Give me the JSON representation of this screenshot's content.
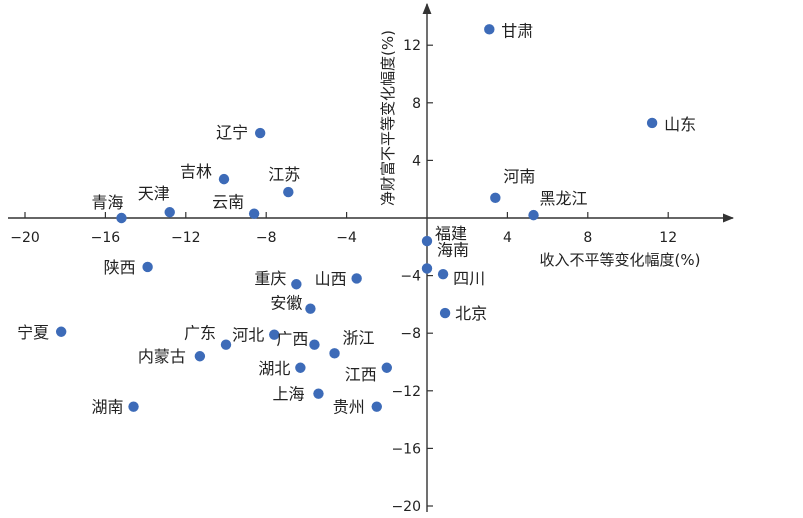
{
  "chart_data": {
    "type": "scatter",
    "title": "",
    "xlabel": "收入不平等变化幅度(%)",
    "ylabel": "净财富不平等变化幅度(%)",
    "xlim": [
      -20,
      14
    ],
    "ylim": [
      -20,
      14
    ],
    "x_ticks": [
      -20,
      -16,
      -12,
      -8,
      -4,
      4,
      8,
      12
    ],
    "y_ticks": [
      12,
      8,
      4,
      -4,
      -8,
      -12,
      -16,
      -20
    ],
    "grid": false,
    "point_color": "#3d6bb8",
    "points": [
      {
        "label": "甘肃",
        "x": 3.1,
        "y": 13.1
      },
      {
        "label": "山东",
        "x": 11.2,
        "y": 6.6
      },
      {
        "label": "辽宁",
        "x": -8.3,
        "y": 5.9
      },
      {
        "label": "吉林",
        "x": -10.1,
        "y": 2.7
      },
      {
        "label": "江苏",
        "x": -6.9,
        "y": 1.8
      },
      {
        "label": "青海",
        "x": -15.2,
        "y": 0.0
      },
      {
        "label": "天津",
        "x": -12.8,
        "y": 0.4
      },
      {
        "label": "云南",
        "x": -8.6,
        "y": 0.3
      },
      {
        "label": "河南",
        "x": 3.4,
        "y": 1.4
      },
      {
        "label": "黑龙江",
        "x": 5.3,
        "y": 0.2
      },
      {
        "label": "福建",
        "x": 0.0,
        "y": -1.6
      },
      {
        "label": "海南",
        "x": 0.0,
        "y": -3.5
      },
      {
        "label": "四川",
        "x": 0.8,
        "y": -3.9
      },
      {
        "label": "山西",
        "x": -3.5,
        "y": -4.2
      },
      {
        "label": "陕西",
        "x": -13.9,
        "y": -3.4
      },
      {
        "label": "重庆",
        "x": -6.5,
        "y": -4.6
      },
      {
        "label": "北京",
        "x": 0.9,
        "y": -6.6
      },
      {
        "label": "安徽",
        "x": -5.8,
        "y": -6.3
      },
      {
        "label": "宁夏",
        "x": -18.2,
        "y": -7.9
      },
      {
        "label": "广东",
        "x": -10.0,
        "y": -8.8
      },
      {
        "label": "河北",
        "x": -7.6,
        "y": -8.1
      },
      {
        "label": "广西",
        "x": -5.6,
        "y": -8.8
      },
      {
        "label": "浙江",
        "x": -4.6,
        "y": -9.4
      },
      {
        "label": "内蒙古",
        "x": -11.3,
        "y": -9.6
      },
      {
        "label": "湖北",
        "x": -6.3,
        "y": -10.4
      },
      {
        "label": "江西",
        "x": -2.0,
        "y": -10.4
      },
      {
        "label": "上海",
        "x": -5.4,
        "y": -12.2
      },
      {
        "label": "贵州",
        "x": -2.5,
        "y": -13.1
      },
      {
        "label": "湖南",
        "x": -14.6,
        "y": -13.1
      }
    ]
  }
}
